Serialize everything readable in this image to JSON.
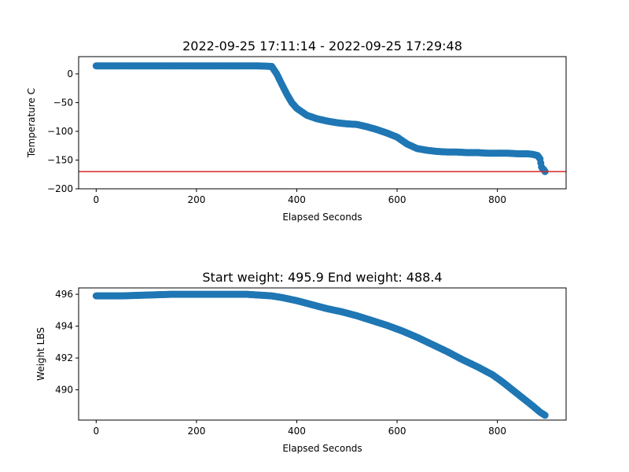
{
  "chart_data": [
    {
      "type": "scatter",
      "title": "2022-09-25 17:11:14 - 2022-09-25 17:29:48",
      "xlabel": "Elapsed Seconds",
      "ylabel": "Temperature C",
      "xlim": [
        -35,
        937
      ],
      "ylim": [
        -200,
        30
      ],
      "xticks": [
        0,
        200,
        400,
        600,
        800
      ],
      "yticks": [
        0,
        -50,
        -100,
        -150,
        -200
      ],
      "xtick_labels": [
        "0",
        "200",
        "400",
        "600",
        "800"
      ],
      "ytick_labels": [
        "0",
        "−50",
        "−100",
        "−150",
        "−200"
      ],
      "marker_color": "#1f77b4",
      "reference_line": {
        "y": -170,
        "color": "#d62728"
      },
      "x": [
        0,
        40,
        80,
        120,
        160,
        200,
        240,
        280,
        320,
        350,
        360,
        370,
        380,
        390,
        400,
        420,
        440,
        460,
        480,
        500,
        520,
        540,
        560,
        580,
        600,
        620,
        640,
        660,
        680,
        700,
        720,
        740,
        760,
        780,
        800,
        820,
        840,
        860,
        870,
        880,
        885,
        888,
        890,
        893,
        895
      ],
      "y": [
        14,
        14,
        14,
        14,
        14,
        14,
        14,
        14,
        14,
        13,
        0,
        -18,
        -35,
        -50,
        -60,
        -72,
        -78,
        -82,
        -85,
        -87,
        -88,
        -92,
        -97,
        -103,
        -110,
        -122,
        -130,
        -133,
        -135,
        -136,
        -136,
        -137,
        -137,
        -138,
        -138,
        -138,
        -139,
        -139,
        -140,
        -142,
        -148,
        -162,
        -165,
        -167,
        -170
      ]
    },
    {
      "type": "scatter",
      "title": "Start weight: 495.9 End weight: 488.4",
      "xlabel": "Elapsed Seconds",
      "ylabel": "Weight LBS",
      "xlim": [
        -35,
        937
      ],
      "ylim": [
        488.1,
        496.4
      ],
      "xticks": [
        0,
        200,
        400,
        600,
        800
      ],
      "yticks": [
        490,
        492,
        494,
        496
      ],
      "xtick_labels": [
        "0",
        "200",
        "400",
        "600",
        "800"
      ],
      "ytick_labels": [
        "490",
        "492",
        "494",
        "496"
      ],
      "marker_color": "#1f77b4",
      "x": [
        0,
        50,
        100,
        150,
        200,
        250,
        300,
        350,
        370,
        400,
        430,
        460,
        490,
        520,
        550,
        580,
        610,
        640,
        670,
        700,
        730,
        760,
        790,
        810,
        830,
        850,
        870,
        885,
        895
      ],
      "y": [
        495.9,
        495.9,
        495.95,
        496.0,
        496.0,
        496.0,
        496.0,
        495.9,
        495.8,
        495.6,
        495.35,
        495.1,
        494.9,
        494.65,
        494.35,
        494.05,
        493.7,
        493.3,
        492.85,
        492.4,
        491.9,
        491.45,
        490.95,
        490.5,
        490.0,
        489.5,
        489.0,
        488.6,
        488.4
      ]
    }
  ]
}
